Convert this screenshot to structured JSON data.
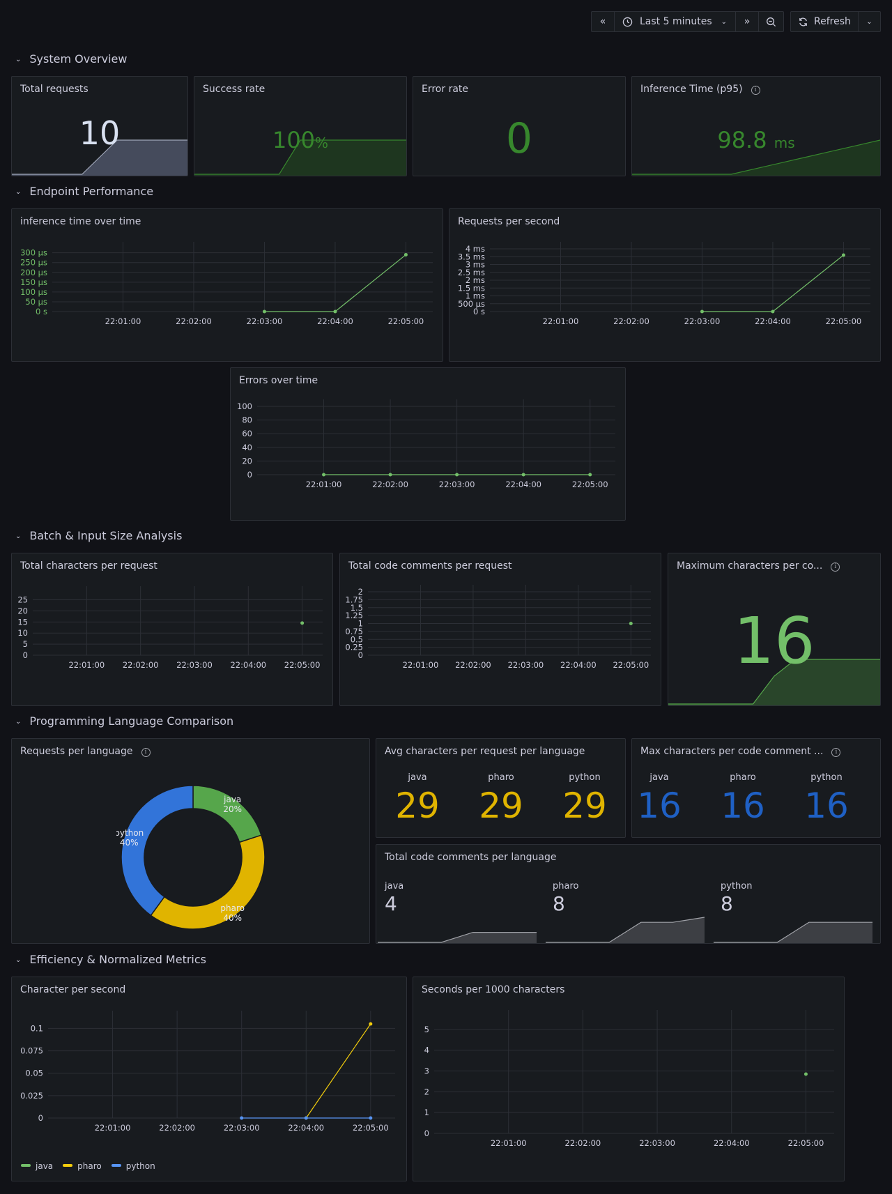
{
  "toolbar": {
    "time_range": "Last 5 minutes",
    "refresh_label": "Refresh"
  },
  "rows": {
    "system_overview": "System Overview",
    "endpoint_performance": "Endpoint Performance",
    "batch_input": "Batch & Input Size Analysis",
    "language_comparison": "Programming Language Comparison",
    "efficiency": "Efficiency & Normalized Metrics"
  },
  "stats": {
    "total_requests": {
      "title": "Total requests",
      "value": "10",
      "sparkline": [
        0,
        0,
        0,
        0,
        0,
        5,
        10,
        10,
        10,
        10,
        10
      ]
    },
    "success_rate": {
      "title": "Success rate",
      "value": "100",
      "unit": "%",
      "sparkline": [
        0,
        0,
        0,
        0,
        0,
        100,
        100,
        100,
        100,
        100,
        100
      ]
    },
    "error_rate": {
      "title": "Error rate",
      "value": "0"
    },
    "inference_time": {
      "title": "Inference Time (p95)",
      "value": "98.8",
      "unit": "ms",
      "sparkline": [
        0,
        0,
        0,
        0,
        0,
        10,
        20,
        30,
        40,
        50,
        60
      ]
    },
    "max_chars_per_comment": {
      "title": "Maximum characters per co...",
      "value": "16",
      "sparkline": [
        0,
        0,
        0,
        0,
        0,
        10,
        16,
        16,
        16,
        16,
        16
      ]
    }
  },
  "colors": {
    "green": "#73bf69",
    "dark_green": "#37872d",
    "yellow": "#f2cc0c",
    "blue": "#5794f2",
    "blue_big": "#1f60c4",
    "orange_big": "#e0b400",
    "grey_big": "#ccccdc"
  },
  "chart_data": [
    {
      "id": "inference_time_over_time",
      "type": "line",
      "title": "inference time over time",
      "x": [
        "22:01:00",
        "22:02:00",
        "22:03:00",
        "22:04:00",
        "22:05:00"
      ],
      "ytick_labels": [
        "0 s",
        "50 µs",
        "100 µs",
        "150 µs",
        "200 µs",
        "250 µs",
        "300 µs"
      ],
      "ylim": [
        0,
        320
      ],
      "series": [
        {
          "color": "#73bf69",
          "points": [
            [
              "22:03:00",
              0
            ],
            [
              "22:04:00",
              0
            ],
            [
              "22:05:00",
              290
            ]
          ]
        }
      ]
    },
    {
      "id": "requests_per_second",
      "type": "line",
      "title": "Requests per second",
      "x": [
        "22:01:00",
        "22:02:00",
        "22:03:00",
        "22:04:00",
        "22:05:00"
      ],
      "ytick_labels": [
        "0 s",
        "500 µs",
        "1 ms",
        "1.5 ms",
        "2 ms",
        "2.5 ms",
        "3 ms",
        "3.5 ms",
        "4 ms"
      ],
      "ylim": [
        0,
        4
      ],
      "series": [
        {
          "color": "#73bf69",
          "points": [
            [
              "22:03:00",
              0
            ],
            [
              "22:04:00",
              0
            ],
            [
              "22:05:00",
              3.6
            ]
          ]
        }
      ]
    },
    {
      "id": "errors_over_time",
      "type": "line",
      "title": "Errors over time",
      "x": [
        "22:01:00",
        "22:02:00",
        "22:03:00",
        "22:04:00",
        "22:05:00"
      ],
      "ytick_labels": [
        "0",
        "20",
        "40",
        "60",
        "80",
        "100"
      ],
      "ylim": [
        0,
        100
      ],
      "series": [
        {
          "color": "#73bf69",
          "points": [
            [
              "22:01:00",
              0
            ],
            [
              "22:02:00",
              0
            ],
            [
              "22:03:00",
              0
            ],
            [
              "22:04:00",
              0
            ],
            [
              "22:05:00",
              0
            ]
          ]
        }
      ]
    },
    {
      "id": "total_chars_per_request",
      "type": "scatter",
      "title": "Total characters per request",
      "x": [
        "22:01:00",
        "22:02:00",
        "22:03:00",
        "22:04:00",
        "22:05:00"
      ],
      "ytick_labels": [
        "0",
        "5",
        "10",
        "15",
        "20",
        "25"
      ],
      "ylim": [
        0,
        28
      ],
      "series": [
        {
          "color": "#73bf69",
          "points": [
            [
              "22:05:00",
              14.5
            ]
          ]
        }
      ]
    },
    {
      "id": "total_code_comments_per_request",
      "type": "scatter",
      "title": "Total code comments per request",
      "x": [
        "22:01:00",
        "22:02:00",
        "22:03:00",
        "22:04:00",
        "22:05:00"
      ],
      "ytick_labels": [
        "0",
        "0.25",
        "0.5",
        "0.75",
        "1",
        "1.25",
        "1.5",
        "1.75",
        "2"
      ],
      "ylim": [
        0,
        2
      ],
      "series": [
        {
          "color": "#73bf69",
          "points": [
            [
              "22:05:00",
              1
            ]
          ]
        }
      ]
    },
    {
      "id": "requests_per_language",
      "type": "pie",
      "title": "Requests per language",
      "categories": [
        "java",
        "pharo",
        "python"
      ],
      "values": [
        20,
        40,
        40
      ],
      "labels": [
        "20%",
        "40%",
        "40%"
      ],
      "colors": [
        "#56a64b",
        "#e0b400",
        "#3274d9"
      ]
    },
    {
      "id": "character_per_second",
      "type": "line",
      "title": "Character per second",
      "x": [
        "22:01:00",
        "22:02:00",
        "22:03:00",
        "22:04:00",
        "22:05:00"
      ],
      "ytick_labels": [
        "0",
        "0.025",
        "0.05",
        "0.075",
        "0.1"
      ],
      "ylim": [
        0,
        0.112
      ],
      "series": [
        {
          "name": "java",
          "color": "#73bf69",
          "points": []
        },
        {
          "name": "pharo",
          "color": "#f2cc0c",
          "points": [
            [
              "22:04:00",
              0
            ],
            [
              "22:05:00",
              0.105
            ]
          ]
        },
        {
          "name": "python",
          "color": "#5794f2",
          "points": [
            [
              "22:03:00",
              0
            ],
            [
              "22:04:00",
              0
            ],
            [
              "22:05:00",
              0
            ]
          ]
        }
      ]
    },
    {
      "id": "seconds_per_1000_chars",
      "type": "scatter",
      "title": "Seconds per 1000 characters",
      "x": [
        "22:01:00",
        "22:02:00",
        "22:03:00",
        "22:04:00",
        "22:05:00"
      ],
      "ytick_labels": [
        "0",
        "1",
        "2",
        "3",
        "4",
        "5"
      ],
      "ylim": [
        0,
        5.6
      ],
      "series": [
        {
          "color": "#73bf69",
          "points": [
            [
              "22:05:00",
              2.85
            ]
          ]
        }
      ]
    }
  ],
  "avg_chars": {
    "title": "Avg characters per request per language",
    "items": [
      {
        "label": "java",
        "value": "29"
      },
      {
        "label": "pharo",
        "value": "29"
      },
      {
        "label": "python",
        "value": "29"
      }
    ]
  },
  "max_chars_lang": {
    "title": "Max characters per code comment ...",
    "items": [
      {
        "label": "java",
        "value": "16"
      },
      {
        "label": "pharo",
        "value": "16"
      },
      {
        "label": "python",
        "value": "16"
      }
    ]
  },
  "comments_lang": {
    "title": "Total code comments per language",
    "items": [
      {
        "label": "java",
        "value": "4",
        "sparkline": [
          0,
          0,
          0,
          0,
          0,
          2,
          4,
          4,
          4,
          4,
          4
        ]
      },
      {
        "label": "pharo",
        "value": "8",
        "sparkline": [
          0,
          0,
          0,
          0,
          0,
          4,
          8,
          8,
          8,
          9,
          10
        ]
      },
      {
        "label": "python",
        "value": "8",
        "sparkline": [
          0,
          0,
          0,
          0,
          0,
          4,
          8,
          8,
          8,
          8,
          8
        ]
      }
    ]
  }
}
